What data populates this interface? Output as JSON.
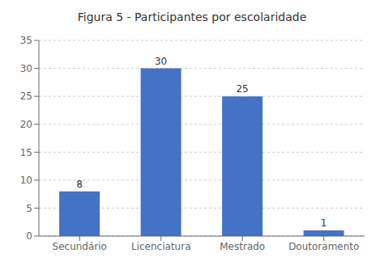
{
  "chart_data": {
    "type": "bar",
    "title": "Figura 5 - Participantes por escolaridade",
    "categories": [
      "Secundário",
      "Licenciatura",
      "Mestrado",
      "Doutoramento"
    ],
    "values": [
      8,
      30,
      25,
      1
    ],
    "color": "#4472C4",
    "ylim": [
      0,
      35
    ],
    "yticks": [
      0,
      5,
      10,
      15,
      20,
      25,
      30,
      35
    ],
    "grid": true,
    "data_labels": true
  }
}
